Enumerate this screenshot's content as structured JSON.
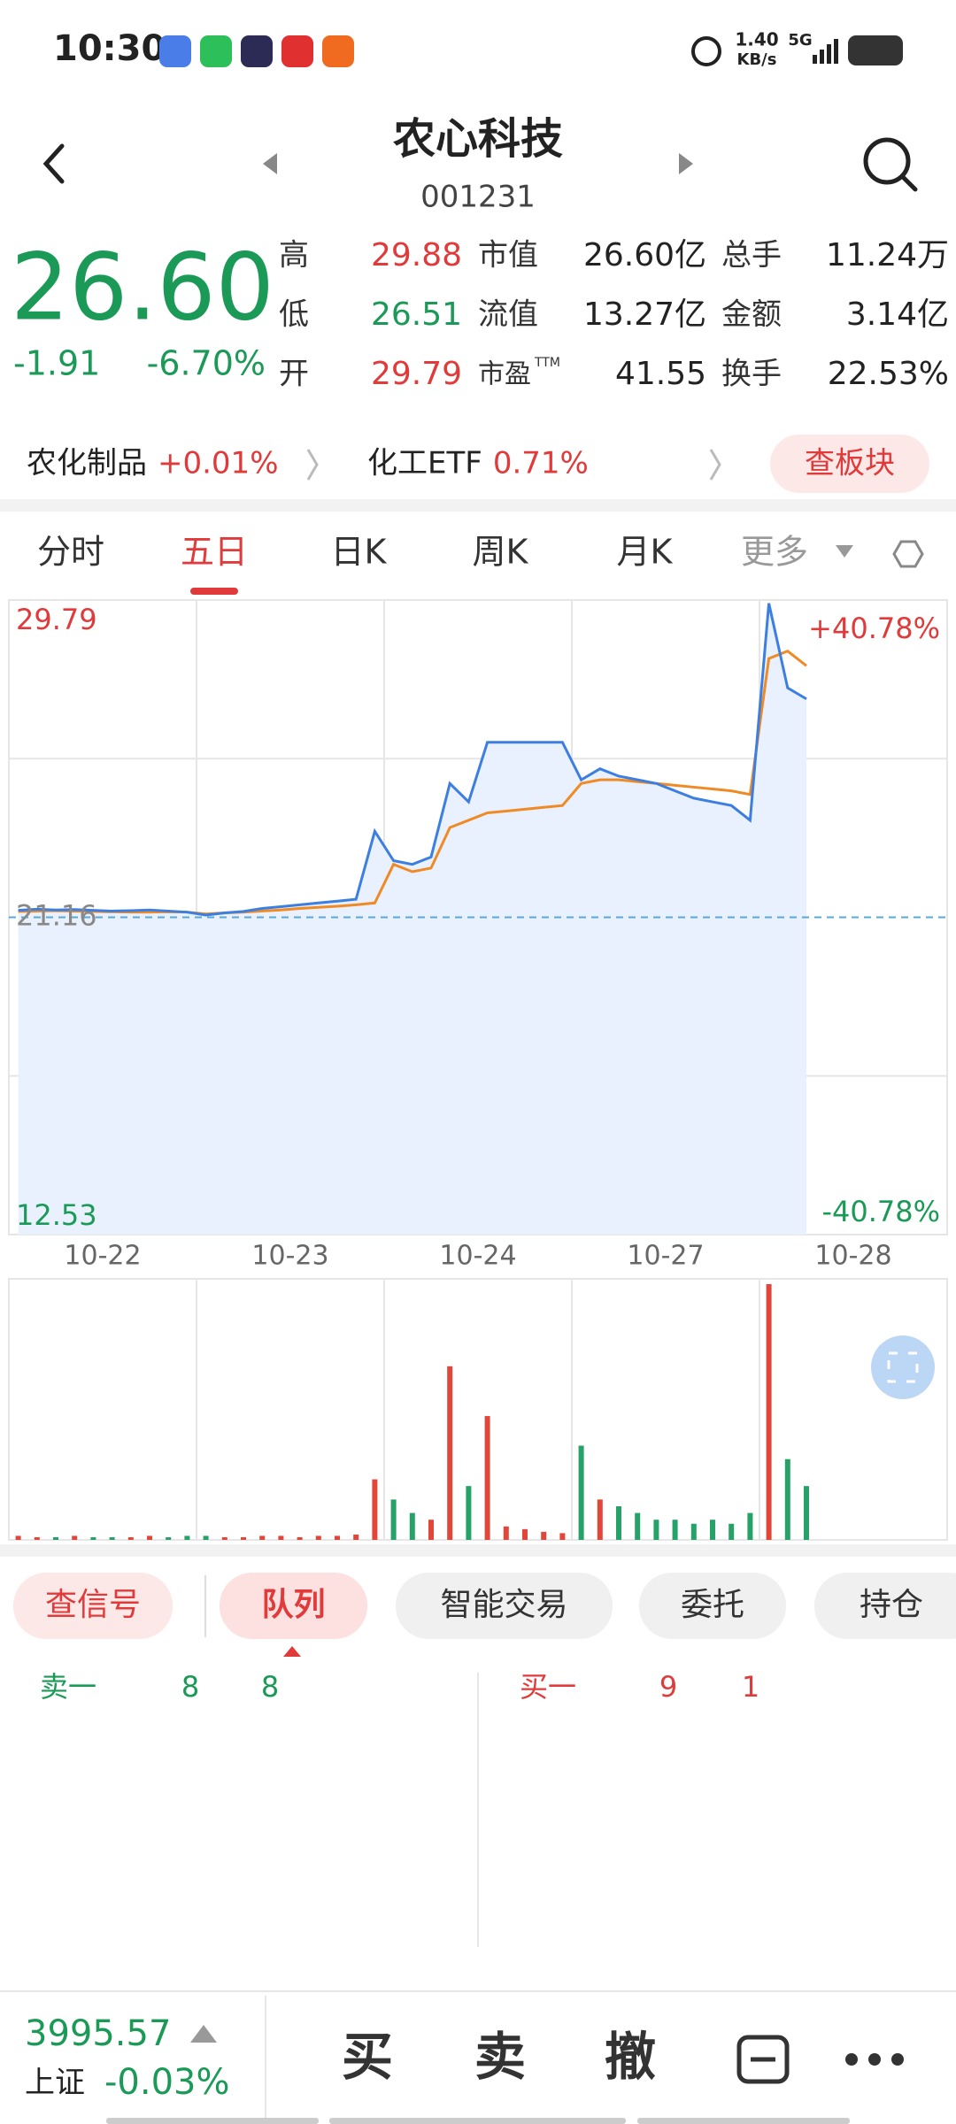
{
  "status_bar": {
    "time": "10:30",
    "speed": "1.40",
    "speed_unit": "KB/s",
    "network": "5G"
  },
  "header": {
    "title": "农心科技",
    "code": "001231"
  },
  "quote": {
    "price": "26.60",
    "change": "-1.91",
    "change_pct": "-6.70%",
    "stats": [
      [
        {
          "label": "高",
          "value": "29.88"
        },
        {
          "label": "市值",
          "value": "26.60亿"
        },
        {
          "label": "总手",
          "value": "11.24万"
        }
      ],
      [
        {
          "label": "低",
          "value": "26.51"
        },
        {
          "label": "流值",
          "value": "13.27亿"
        },
        {
          "label": "金额",
          "value": "3.14亿"
        }
      ],
      [
        {
          "label": "开",
          "value": "29.79"
        },
        {
          "label": "市盈",
          "sup": "TTM",
          "value": "41.55"
        },
        {
          "label": "换手",
          "value": "22.53%"
        }
      ]
    ]
  },
  "sectors": [
    {
      "name": "农化制品",
      "change": "+0.01%"
    },
    {
      "name": "化工ETF",
      "change": "0.71%"
    }
  ],
  "sector_button": "查板块",
  "tabs": [
    "分时",
    "五日",
    "日K",
    "周K",
    "月K",
    "更多"
  ],
  "active_tab": 1,
  "chart_data": [
    {
      "type": "line",
      "categories": [
        "10-22",
        "10-23",
        "10-24",
        "10-27",
        "10-28"
      ],
      "series": [
        {
          "color": "#3d7fe0",
          "values": [
            [
              21.35,
              21.38,
              21.36,
              21.37,
              21.35,
              21.33,
              21.34,
              21.36,
              21.33,
              21.3
            ],
            [
              21.22,
              21.28,
              21.32,
              21.4,
              21.45,
              21.5,
              21.55,
              21.6,
              21.65,
              23.5
            ],
            [
              22.7,
              22.6,
              22.8,
              24.8,
              24.3,
              25.92,
              25.92,
              25.92,
              25.92,
              25.92
            ],
            [
              24.9,
              25.2,
              25.0,
              24.9,
              24.8,
              24.6,
              24.4,
              24.3,
              24.2,
              23.8
            ],
            [
              29.7,
              27.4,
              27.1
            ]
          ]
        },
        {
          "color": "#f08a24",
          "values": [
            [
              21.32,
              21.33,
              21.34,
              21.33,
              21.32,
              21.31,
              21.3,
              21.3,
              21.31,
              21.3
            ],
            [
              21.25,
              21.28,
              21.3,
              21.33,
              21.36,
              21.4,
              21.43,
              21.46,
              21.5,
              21.55
            ],
            [
              22.6,
              22.4,
              22.5,
              23.6,
              23.8,
              24.0,
              24.05,
              24.1,
              24.15,
              24.2
            ],
            [
              24.8,
              24.9,
              24.9,
              24.85,
              24.8,
              24.75,
              24.7,
              24.65,
              24.6,
              24.5
            ],
            [
              28.2,
              28.4,
              28.0
            ]
          ]
        }
      ],
      "ylim": [
        12.53,
        29.79
      ],
      "yticks": [
        29.79,
        21.16,
        12.53
      ],
      "y2lim": [
        -40.78,
        40.78
      ],
      "y2ticks": [
        {
          "value": 40.78,
          "label": "+40.78%"
        },
        {
          "value": -40.78,
          "label": "-40.78%"
        }
      ],
      "grid": true,
      "area_color": "#e8f1fd"
    },
    {
      "type": "bar",
      "values": [
        [
          3,
          2,
          2,
          3,
          2,
          2,
          2,
          3,
          2,
          3
        ],
        [
          3,
          2,
          2,
          3,
          3,
          2,
          3,
          3,
          4,
          45
        ],
        [
          30,
          20,
          15,
          129,
          40,
          92,
          10,
          8,
          6,
          5
        ],
        [
          70,
          30,
          25,
          20,
          15,
          15,
          12,
          15,
          12,
          20
        ],
        [
          190,
          60,
          40
        ]
      ],
      "colors": {
        "up": "#e0463a",
        "down": "#26a269"
      }
    }
  ],
  "actions": [
    "查信号",
    "队列",
    "智能交易",
    "委托",
    "持仓"
  ],
  "active_action": 1,
  "queue": {
    "sell": {
      "label": "卖一",
      "values": [
        "8",
        "8"
      ]
    },
    "buy": {
      "label": "买一",
      "values": [
        "9",
        "1"
      ]
    }
  },
  "footer": {
    "index_value": "3995.57",
    "index_name": "上证",
    "index_change": "-0.03%",
    "buttons": [
      "买",
      "卖",
      "撤"
    ]
  }
}
